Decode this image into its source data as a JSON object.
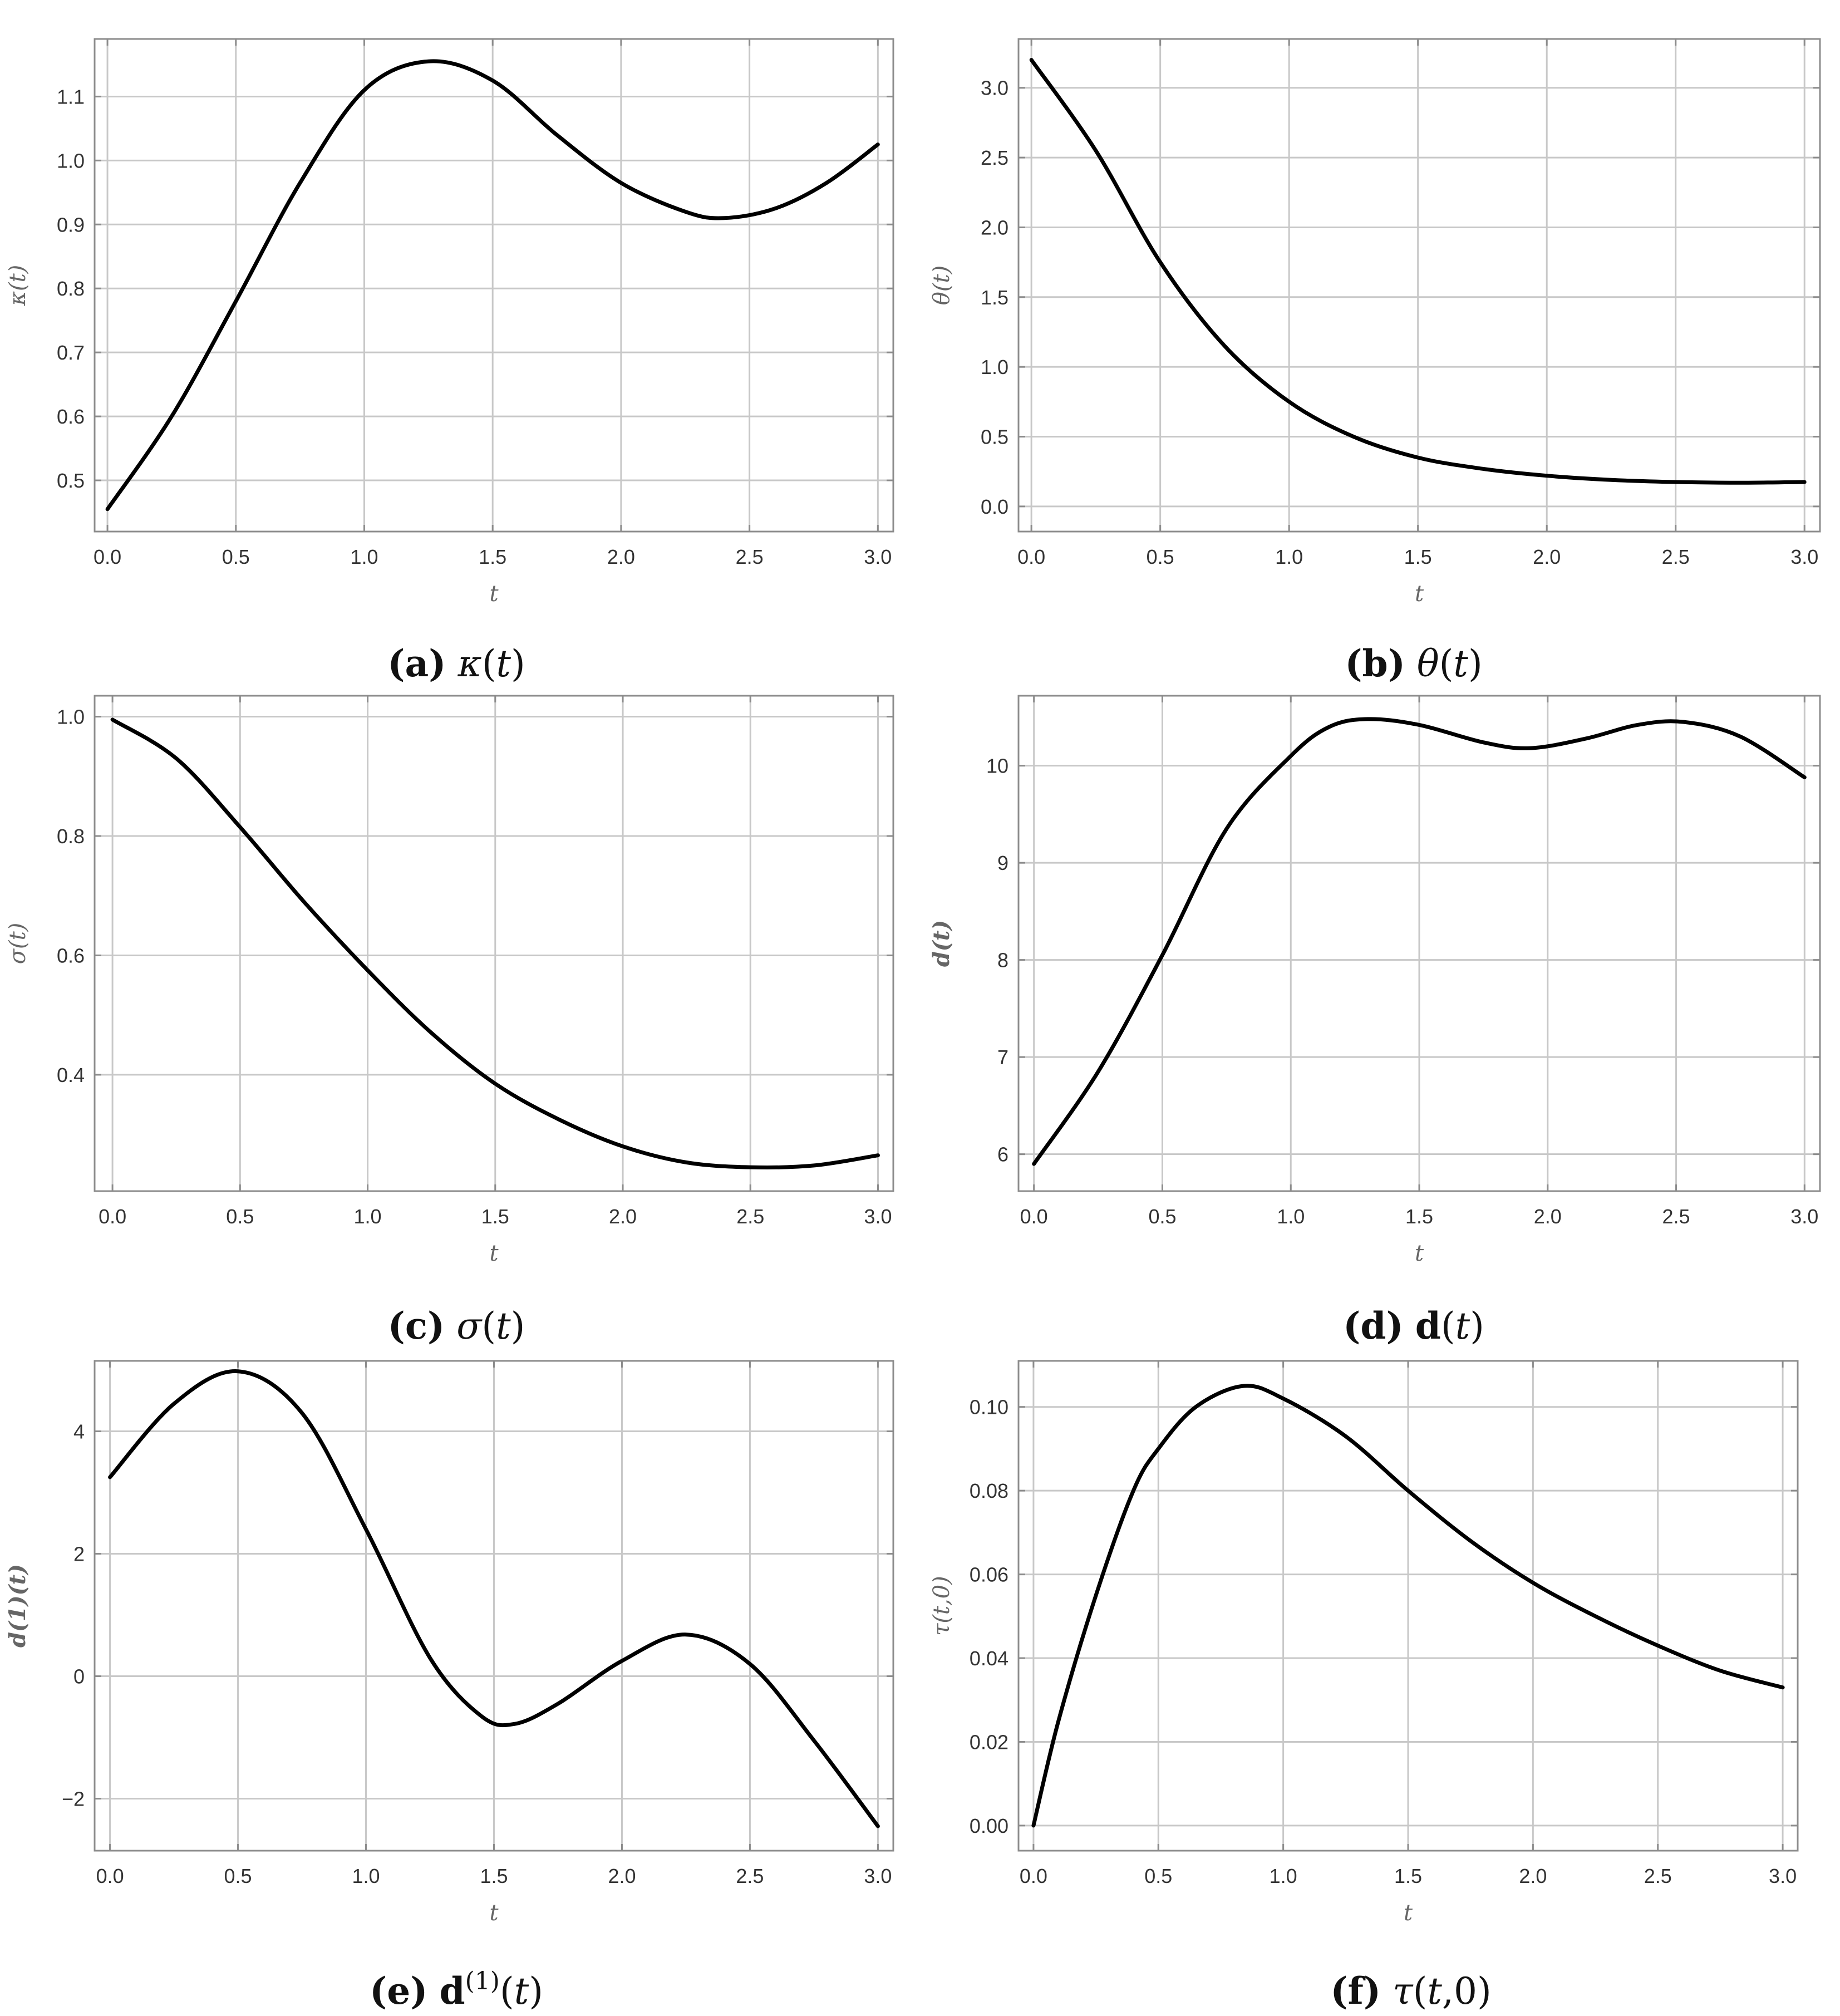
{
  "chart_data": [
    {
      "type": "line",
      "id": "a",
      "caption": {
        "tag": "(a)",
        "math": "κ(t)"
      },
      "xlabel": "t",
      "ylabel": "κ(t)",
      "xlim": [
        -0.05,
        3.06
      ],
      "ylim": [
        0.42,
        1.19
      ],
      "xticks": [
        0.0,
        0.5,
        1.0,
        1.5,
        2.0,
        2.5,
        3.0
      ],
      "xtick_labels": [
        "0.0",
        "0.5",
        "1.0",
        "1.5",
        "2.0",
        "2.5",
        "3.0"
      ],
      "yticks": [
        0.5,
        0.6,
        0.7,
        0.8,
        0.9,
        1.0,
        1.1
      ],
      "ytick_labels": [
        "0.5",
        "0.6",
        "0.7",
        "0.8",
        "0.9",
        "1.0",
        "1.1"
      ],
      "grid": true,
      "x": [
        0.0,
        0.25,
        0.5,
        0.75,
        1.0,
        1.25,
        1.5,
        1.75,
        2.0,
        2.25,
        2.4,
        2.6,
        2.8,
        3.0
      ],
      "y": [
        0.455,
        0.6,
        0.78,
        0.965,
        1.11,
        1.155,
        1.125,
        1.04,
        0.965,
        0.92,
        0.91,
        0.925,
        0.965,
        1.025
      ]
    },
    {
      "type": "line",
      "id": "b",
      "caption": {
        "tag": "(b)",
        "math": "θ(t)"
      },
      "xlabel": "t",
      "ylabel": "θ(t)",
      "xlim": [
        -0.05,
        3.06
      ],
      "ylim": [
        -0.18,
        3.35
      ],
      "xticks": [
        0.0,
        0.5,
        1.0,
        1.5,
        2.0,
        2.5,
        3.0
      ],
      "xtick_labels": [
        "0.0",
        "0.5",
        "1.0",
        "1.5",
        "2.0",
        "2.5",
        "3.0"
      ],
      "yticks": [
        0.0,
        0.5,
        1.0,
        1.5,
        2.0,
        2.5,
        3.0
      ],
      "ytick_labels": [
        "0.0",
        "0.5",
        "1.0",
        "1.5",
        "2.0",
        "2.5",
        "3.0"
      ],
      "grid": true,
      "x": [
        0.0,
        0.25,
        0.5,
        0.75,
        1.0,
        1.25,
        1.5,
        1.75,
        2.0,
        2.25,
        2.5,
        2.75,
        3.0
      ],
      "y": [
        3.2,
        2.55,
        1.75,
        1.15,
        0.75,
        0.5,
        0.35,
        0.27,
        0.22,
        0.19,
        0.175,
        0.17,
        0.175
      ]
    },
    {
      "type": "line",
      "id": "c",
      "caption": {
        "tag": "(c)",
        "math": "σ(t)"
      },
      "xlabel": "t",
      "ylabel": "σ(t)",
      "xlim": [
        -0.07,
        3.06
      ],
      "ylim": [
        0.205,
        1.035
      ],
      "xticks": [
        0.0,
        0.5,
        1.0,
        1.5,
        2.0,
        2.5,
        3.0
      ],
      "xtick_labels": [
        "0.0",
        "0.5",
        "1.0",
        "1.5",
        "2.0",
        "2.5",
        "3.0"
      ],
      "yticks": [
        0.4,
        0.6,
        0.8,
        1.0
      ],
      "ytick_labels": [
        "0.4",
        "0.6",
        "0.8",
        "1.0"
      ],
      "grid": true,
      "x": [
        0.0,
        0.25,
        0.5,
        0.75,
        1.0,
        1.25,
        1.5,
        1.75,
        2.0,
        2.25,
        2.5,
        2.75,
        3.0
      ],
      "y": [
        0.995,
        0.93,
        0.815,
        0.69,
        0.575,
        0.47,
        0.385,
        0.325,
        0.28,
        0.253,
        0.245,
        0.248,
        0.265
      ]
    },
    {
      "type": "line",
      "id": "d",
      "caption": {
        "tag": "(d)",
        "math": "d(t)"
      },
      "xlabel": "t",
      "ylabel": "d(t)",
      "xlim": [
        -0.06,
        3.06
      ],
      "ylim": [
        5.62,
        10.72
      ],
      "xticks": [
        0.0,
        0.5,
        1.0,
        1.5,
        2.0,
        2.5,
        3.0
      ],
      "xtick_labels": [
        "0.0",
        "0.5",
        "1.0",
        "1.5",
        "2.0",
        "2.5",
        "3.0"
      ],
      "yticks": [
        6,
        7,
        8,
        9,
        10
      ],
      "ytick_labels": [
        "6",
        "7",
        "8",
        "9",
        "10"
      ],
      "grid": true,
      "x": [
        0.0,
        0.25,
        0.5,
        0.75,
        1.0,
        1.15,
        1.3,
        1.5,
        1.75,
        1.93,
        2.15,
        2.35,
        2.53,
        2.75,
        3.0
      ],
      "y": [
        5.9,
        6.85,
        8.05,
        9.35,
        10.1,
        10.4,
        10.48,
        10.42,
        10.24,
        10.18,
        10.28,
        10.42,
        10.45,
        10.3,
        9.88
      ]
    },
    {
      "type": "line",
      "id": "e",
      "caption": {
        "tag": "(e)",
        "math": "d(1)(t)"
      },
      "xlabel": "t",
      "ylabel": "d(1)(t)",
      "xlim": [
        -0.06,
        3.06
      ],
      "ylim": [
        -2.85,
        5.15
      ],
      "xticks": [
        0.0,
        0.5,
        1.0,
        1.5,
        2.0,
        2.5,
        3.0
      ],
      "xtick_labels": [
        "0.0",
        "0.5",
        "1.0",
        "1.5",
        "2.0",
        "2.5",
        "3.0"
      ],
      "yticks": [
        -2,
        0,
        2,
        4
      ],
      "ytick_labels": [
        "−2",
        "0",
        "2",
        "4"
      ],
      "grid": true,
      "x": [
        0.0,
        0.25,
        0.5,
        0.75,
        1.0,
        1.25,
        1.45,
        1.58,
        1.75,
        2.0,
        2.25,
        2.5,
        2.75,
        3.0
      ],
      "y": [
        3.25,
        4.45,
        4.98,
        4.3,
        2.4,
        0.3,
        -0.65,
        -0.78,
        -0.45,
        0.25,
        0.68,
        0.2,
        -1.05,
        -2.45
      ]
    },
    {
      "type": "line",
      "id": "f",
      "caption": {
        "tag": "(f)",
        "math": "τ(t,0)"
      },
      "xlabel": "t",
      "ylabel": "τ(t,0)",
      "xlim": [
        -0.06,
        3.06
      ],
      "ylim": [
        -0.006,
        0.111
      ],
      "xticks": [
        0.0,
        0.5,
        1.0,
        1.5,
        2.0,
        2.5,
        3.0
      ],
      "xtick_labels": [
        "0.0",
        "0.5",
        "1.0",
        "1.5",
        "2.0",
        "2.5",
        "3.0"
      ],
      "yticks": [
        0.0,
        0.02,
        0.04,
        0.06,
        0.08,
        0.1
      ],
      "ytick_labels": [
        "0.00",
        "0.02",
        "0.04",
        "0.06",
        "0.08",
        "0.10"
      ],
      "grid": true,
      "x": [
        0.0,
        0.1,
        0.25,
        0.4,
        0.5,
        0.65,
        0.84,
        1.0,
        1.25,
        1.5,
        1.75,
        2.0,
        2.25,
        2.5,
        2.75,
        3.0
      ],
      "y": [
        0.0,
        0.025,
        0.055,
        0.08,
        0.09,
        0.1,
        0.105,
        0.102,
        0.093,
        0.08,
        0.068,
        0.058,
        0.05,
        0.043,
        0.037,
        0.033
      ]
    }
  ]
}
